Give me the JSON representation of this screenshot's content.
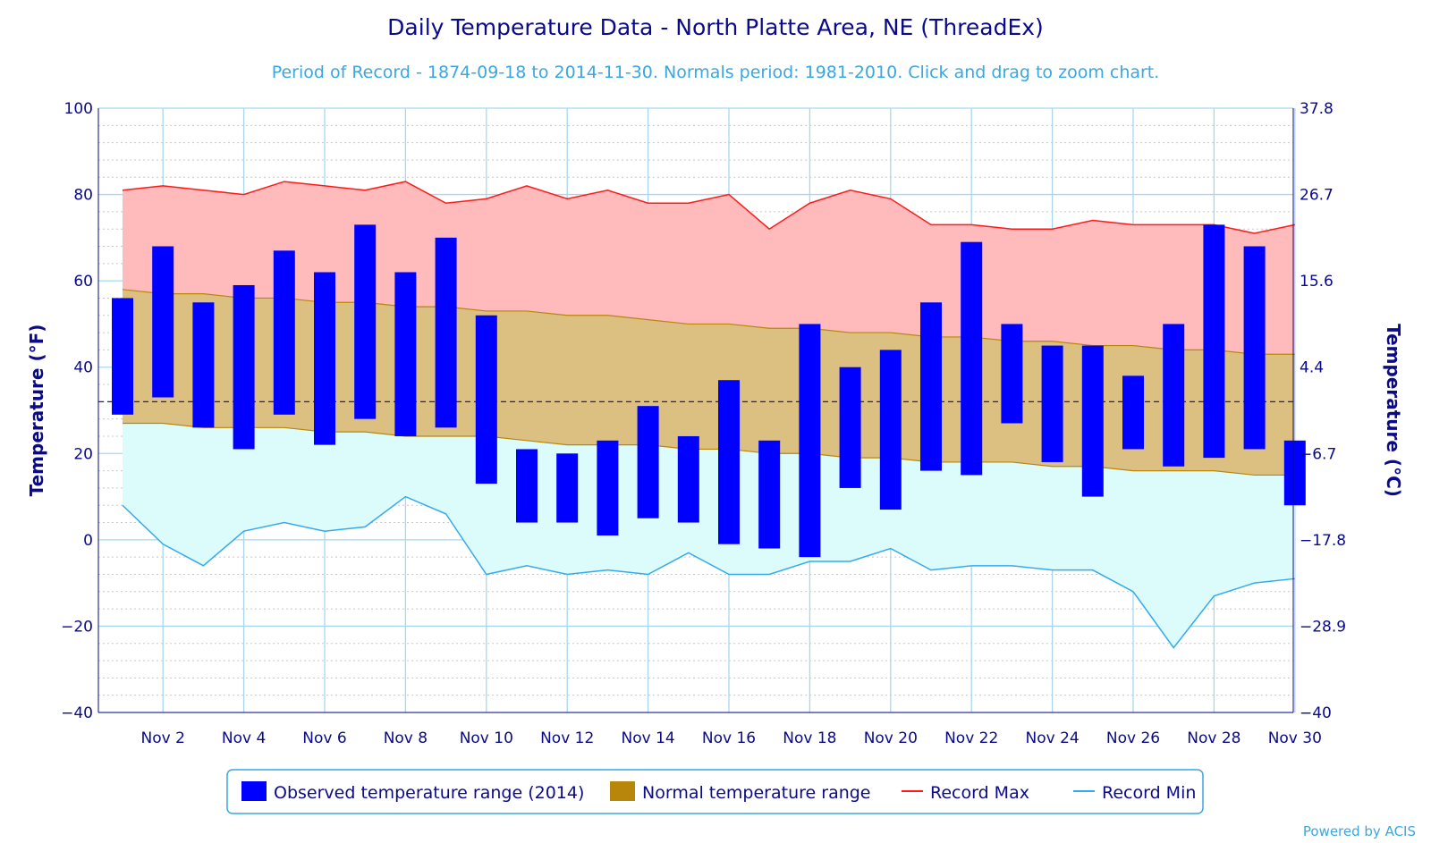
{
  "chart_data": {
    "type": "bar",
    "title": "Daily Temperature Data - North Platte Area, NE (ThreadEx)",
    "subtitle": "Period of Record - 1874-09-18 to 2014-11-30. Normals period: 1981-2010. Click and drag to zoom chart.",
    "ylabel_left": "Temperature (°F)",
    "ylabel_right": "Temperature (°C)",
    "ylim": [
      -40,
      100
    ],
    "y_ticks_left": [
      "100",
      "80",
      "60",
      "40",
      "20",
      "0",
      "−20",
      "−40"
    ],
    "y_ticks_right": [
      "37.8",
      "26.7",
      "15.6",
      "4.4",
      "−6.7",
      "−17.8",
      "−28.9",
      "−40"
    ],
    "x_tick_labels": [
      "Nov 2",
      "Nov 4",
      "Nov 6",
      "Nov 8",
      "Nov 10",
      "Nov 12",
      "Nov 14",
      "Nov 16",
      "Nov 18",
      "Nov 20",
      "Nov 22",
      "Nov 24",
      "Nov 26",
      "Nov 28",
      "Nov 30"
    ],
    "x_ticks_days": [
      2,
      4,
      6,
      8,
      10,
      12,
      14,
      16,
      18,
      20,
      22,
      24,
      26,
      28,
      30
    ],
    "days": [
      1,
      2,
      3,
      4,
      5,
      6,
      7,
      8,
      9,
      10,
      11,
      12,
      13,
      14,
      15,
      16,
      17,
      18,
      19,
      20,
      21,
      22,
      23,
      24,
      25,
      26,
      27,
      28,
      29,
      30
    ],
    "freezing_line_f": 32,
    "grid": "on",
    "legend_position": "bottom-center",
    "series": [
      {
        "name": "Observed temperature range (2014)",
        "kind": "range-bar",
        "color": "#0000ff",
        "high": [
          56,
          68,
          55,
          59,
          67,
          62,
          73,
          62,
          70,
          52,
          21,
          20,
          23,
          31,
          24,
          37,
          23,
          50,
          40,
          44,
          55,
          69,
          50,
          45,
          45,
          38,
          50,
          73,
          68,
          23
        ],
        "low": [
          29,
          33,
          26,
          21,
          29,
          22,
          28,
          24,
          26,
          13,
          4,
          4,
          1,
          5,
          4,
          -1,
          -2,
          -4,
          12,
          7,
          16,
          15,
          27,
          18,
          10,
          21,
          17,
          19,
          21,
          8
        ]
      },
      {
        "name": "Normal temperature range",
        "kind": "range-area",
        "color": "#b8860b",
        "fill": "#dcc081",
        "high": [
          58,
          57,
          57,
          56,
          56,
          55,
          55,
          54,
          54,
          53,
          53,
          52,
          52,
          51,
          50,
          50,
          49,
          49,
          48,
          48,
          47,
          47,
          46,
          46,
          45,
          45,
          44,
          44,
          43,
          43
        ],
        "low": [
          27,
          27,
          26,
          26,
          26,
          25,
          25,
          24,
          24,
          24,
          23,
          22,
          22,
          22,
          21,
          21,
          20,
          20,
          19,
          19,
          18,
          18,
          18,
          17,
          17,
          16,
          16,
          16,
          15,
          15
        ]
      },
      {
        "name": "Record Max",
        "kind": "line",
        "color": "#ff1a1a",
        "fill": "#ffbbbb",
        "values": [
          81,
          82,
          81,
          80,
          83,
          82,
          81,
          83,
          78,
          79,
          82,
          79,
          81,
          78,
          78,
          80,
          72,
          78,
          81,
          79,
          73,
          73,
          72,
          72,
          74,
          73,
          73,
          73,
          71,
          73
        ]
      },
      {
        "name": "Record Min",
        "kind": "line",
        "color": "#33aaee",
        "fill": "#dcfcfc",
        "values": [
          8,
          -1,
          -6,
          2,
          4,
          2,
          3,
          10,
          6,
          -8,
          -6,
          -8,
          -7,
          -8,
          -3,
          -8,
          -8,
          -5,
          -5,
          -2,
          -7,
          -6,
          -6,
          -7,
          -7,
          -12,
          -25,
          -13,
          -10,
          -9
        ]
      }
    ],
    "colors": {
      "axis": "#0a0a8a",
      "grid_major": "#a7d7f0",
      "grid_minor": "#c8c8c8",
      "freezing_line": "#1a1aa8",
      "legend_border": "#3aa7e0"
    }
  },
  "credit": "Powered by ACIS"
}
